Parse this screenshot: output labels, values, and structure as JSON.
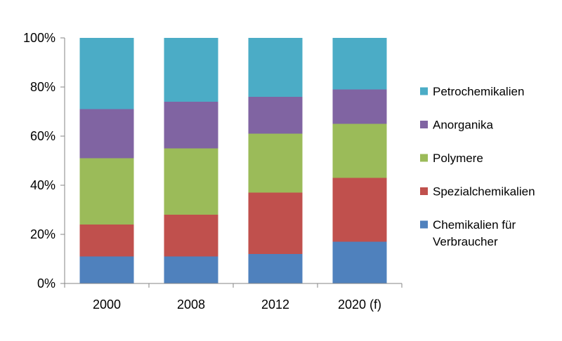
{
  "chart_data": {
    "type": "bar",
    "stacked": true,
    "categories": [
      "2000",
      "2008",
      "2012",
      "2020 (f)"
    ],
    "series": [
      {
        "name": "Chemikalien für Verbraucher",
        "color": "#4f81bd",
        "values": [
          11,
          11,
          12,
          17
        ]
      },
      {
        "name": "Spezialchemikalien",
        "color": "#c0504d",
        "values": [
          13,
          17,
          25,
          26
        ]
      },
      {
        "name": "Polymere",
        "color": "#9bbb59",
        "values": [
          27,
          27,
          24,
          22
        ]
      },
      {
        "name": "Anorganika",
        "color": "#8064a2",
        "values": [
          20,
          19,
          15,
          14
        ]
      },
      {
        "name": "Petrochemikalien",
        "color": "#4bacc6",
        "values": [
          29,
          26,
          24,
          21
        ]
      }
    ],
    "y_ticks": [
      "0%",
      "20%",
      "40%",
      "60%",
      "80%",
      "100%"
    ],
    "ylim": [
      0,
      100
    ],
    "legend": {
      "position": "right",
      "labels": [
        [
          "Petrochemikalien"
        ],
        [
          "Anorganika"
        ],
        [
          "Polymere"
        ],
        [
          "Spezialchemikalien"
        ],
        [
          "Chemikalien für",
          "Verbraucher"
        ]
      ]
    },
    "grid": false
  }
}
